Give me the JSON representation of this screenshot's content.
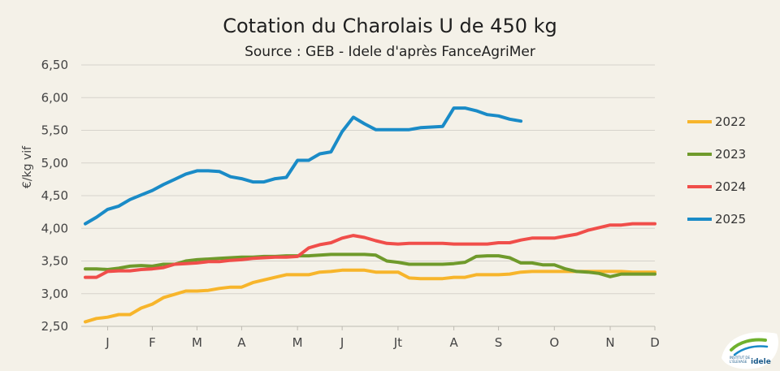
{
  "chart_data": {
    "type": "line",
    "title": "Cotation du Charolais U de 450 kg",
    "subtitle": "Source : GEB - Idele d'après FanceAgriMer",
    "ylabel": "€/kg vif",
    "xlabel": "",
    "ylim": [
      2.5,
      6.5
    ],
    "y_ticks": [
      2.5,
      3.0,
      3.5,
      4.0,
      4.5,
      5.0,
      5.5,
      6.0,
      6.5
    ],
    "y_tick_labels": [
      "2,50",
      "3,00",
      "3,50",
      "4,00",
      "4,50",
      "5,00",
      "5,50",
      "6,00",
      "6,50"
    ],
    "xlim": [
      1,
      52
    ],
    "x_ticks": [
      3,
      7,
      11,
      15,
      20,
      24,
      29,
      34,
      38,
      43,
      48,
      52
    ],
    "x_tick_labels": [
      "J",
      "F",
      "M",
      "A",
      "M",
      "J",
      "Jt",
      "A",
      "S",
      "O",
      "N",
      "D"
    ],
    "grid": true,
    "legend_position": "right",
    "series": [
      {
        "name": "2022",
        "color": "#f7b52b",
        "x": [
          1,
          2,
          3,
          4,
          5,
          6,
          7,
          8,
          9,
          10,
          11,
          12,
          13,
          14,
          15,
          16,
          17,
          18,
          19,
          20,
          21,
          22,
          23,
          24,
          25,
          26,
          27,
          28,
          29,
          30,
          31,
          32,
          33,
          34,
          35,
          36,
          37,
          38,
          39,
          40,
          41,
          42,
          43,
          44,
          45,
          46,
          47,
          48,
          49,
          50,
          51,
          52
        ],
        "values": [
          2.57,
          2.62,
          2.64,
          2.68,
          2.68,
          2.78,
          2.84,
          2.94,
          2.99,
          3.04,
          3.04,
          3.05,
          3.08,
          3.1,
          3.1,
          3.17,
          3.21,
          3.25,
          3.29,
          3.29,
          3.29,
          3.33,
          3.34,
          3.36,
          3.36,
          3.36,
          3.33,
          3.33,
          3.33,
          3.24,
          3.23,
          3.23,
          3.23,
          3.25,
          3.25,
          3.29,
          3.29,
          3.29,
          3.3,
          3.33,
          3.34,
          3.34,
          3.34,
          3.34,
          3.34,
          3.34,
          3.34,
          3.34,
          3.34,
          3.33,
          3.33,
          3.33
        ]
      },
      {
        "name": "2023",
        "color": "#6f9a2b",
        "x": [
          1,
          2,
          3,
          4,
          5,
          6,
          7,
          8,
          9,
          10,
          11,
          12,
          13,
          14,
          15,
          16,
          17,
          18,
          19,
          20,
          21,
          22,
          23,
          24,
          25,
          26,
          27,
          28,
          29,
          30,
          31,
          32,
          33,
          34,
          35,
          36,
          37,
          38,
          39,
          40,
          41,
          42,
          43,
          44,
          45,
          46,
          47,
          48,
          49,
          50,
          51,
          52
        ],
        "values": [
          3.38,
          3.38,
          3.37,
          3.39,
          3.42,
          3.43,
          3.42,
          3.45,
          3.45,
          3.5,
          3.52,
          3.53,
          3.54,
          3.55,
          3.56,
          3.56,
          3.57,
          3.57,
          3.58,
          3.58,
          3.58,
          3.59,
          3.6,
          3.6,
          3.6,
          3.6,
          3.59,
          3.5,
          3.48,
          3.45,
          3.45,
          3.45,
          3.45,
          3.46,
          3.48,
          3.57,
          3.58,
          3.58,
          3.55,
          3.47,
          3.47,
          3.44,
          3.44,
          3.38,
          3.34,
          3.33,
          3.31,
          3.26,
          3.3,
          3.3,
          3.3,
          3.3
        ]
      },
      {
        "name": "2024",
        "color": "#f04e4a",
        "x": [
          1,
          2,
          3,
          4,
          5,
          6,
          7,
          8,
          9,
          10,
          11,
          12,
          13,
          14,
          15,
          16,
          17,
          18,
          19,
          20,
          21,
          22,
          23,
          24,
          25,
          26,
          27,
          28,
          29,
          30,
          31,
          32,
          33,
          34,
          35,
          36,
          37,
          38,
          39,
          40,
          41,
          42,
          43,
          44,
          45,
          46,
          47,
          48,
          49,
          50,
          51,
          52
        ],
        "values": [
          3.25,
          3.25,
          3.34,
          3.35,
          3.35,
          3.37,
          3.38,
          3.4,
          3.45,
          3.46,
          3.47,
          3.49,
          3.49,
          3.51,
          3.52,
          3.54,
          3.55,
          3.56,
          3.56,
          3.57,
          3.7,
          3.75,
          3.78,
          3.85,
          3.89,
          3.86,
          3.81,
          3.77,
          3.76,
          3.77,
          3.77,
          3.77,
          3.77,
          3.76,
          3.76,
          3.76,
          3.76,
          3.78,
          3.78,
          3.82,
          3.85,
          3.85,
          3.85,
          3.88,
          3.91,
          3.97,
          4.01,
          4.05,
          4.05,
          4.07,
          4.07,
          4.07
        ]
      },
      {
        "name": "2025",
        "color": "#1a8bc7",
        "x": [
          1,
          2,
          3,
          4,
          5,
          6,
          7,
          8,
          9,
          10,
          11,
          12,
          13,
          14,
          15,
          16,
          17,
          18,
          19,
          20,
          21,
          22,
          23,
          24,
          25,
          26,
          27,
          28,
          29,
          30,
          31,
          32,
          33,
          34,
          35,
          36,
          37,
          38,
          39,
          40
        ],
        "values": [
          4.07,
          4.17,
          4.29,
          4.34,
          4.44,
          4.51,
          4.58,
          4.67,
          4.75,
          4.83,
          4.88,
          4.88,
          4.87,
          4.79,
          4.76,
          4.71,
          4.71,
          4.76,
          4.78,
          5.04,
          5.04,
          5.14,
          5.17,
          5.48,
          5.7,
          5.6,
          5.51,
          5.51,
          5.51,
          5.51,
          5.54,
          5.55,
          5.56,
          5.84,
          5.84,
          5.8,
          5.74,
          5.72,
          5.67,
          5.64
        ]
      }
    ]
  },
  "logo": {
    "line1": "INSTITUT DE",
    "line2": "L'ÉLEVAGE",
    "brand": "idele"
  }
}
